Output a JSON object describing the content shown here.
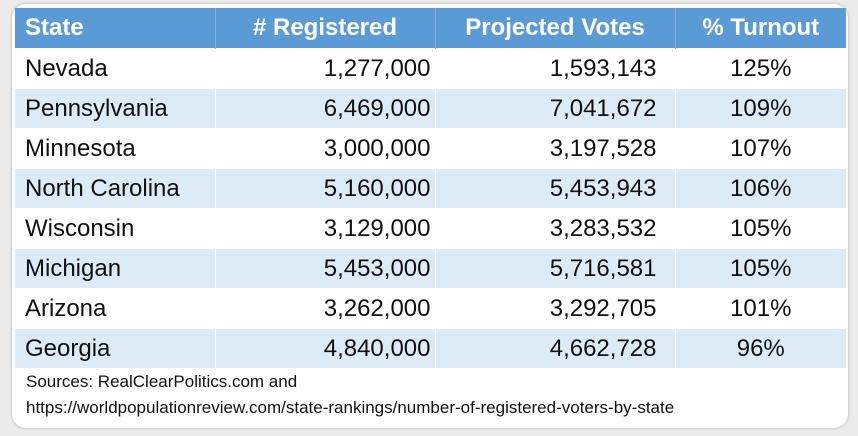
{
  "columns": [
    "State",
    "# Registered",
    "Projected Votes",
    "% Turnout"
  ],
  "rows": [
    {
      "state": "Nevada",
      "registered": "1,277,000",
      "projected": "1,593,143",
      "turnout": "125%"
    },
    {
      "state": "Pennsylvania",
      "registered": "6,469,000",
      "projected": "7,041,672",
      "turnout": "109%"
    },
    {
      "state": "Minnesota",
      "registered": "3,000,000",
      "projected": "3,197,528",
      "turnout": "107%"
    },
    {
      "state": "North Carolina",
      "registered": "5,160,000",
      "projected": "5,453,943",
      "turnout": "106%"
    },
    {
      "state": "Wisconsin",
      "registered": "3,129,000",
      "projected": "3,283,532",
      "turnout": "105%"
    },
    {
      "state": "Michigan",
      "registered": "5,453,000",
      "projected": "5,716,581",
      "turnout": "105%"
    },
    {
      "state": "Arizona",
      "registered": "3,262,000",
      "projected": "3,292,705",
      "turnout": "101%"
    },
    {
      "state": "Georgia",
      "registered": "4,840,000",
      "projected": "4,662,728",
      "turnout": "96%"
    }
  ],
  "sources": {
    "line1": "Sources: RealClearPolitics.com and",
    "line2": "https://worldpopulationreview.com/state-rankings/number-of-registered-voters-by-state"
  },
  "colors": {
    "header_bg": "#5b9bd5",
    "header_text": "#ffffff",
    "row_alt_bg": "#ddebf7",
    "row_bg": "#ffffff"
  }
}
